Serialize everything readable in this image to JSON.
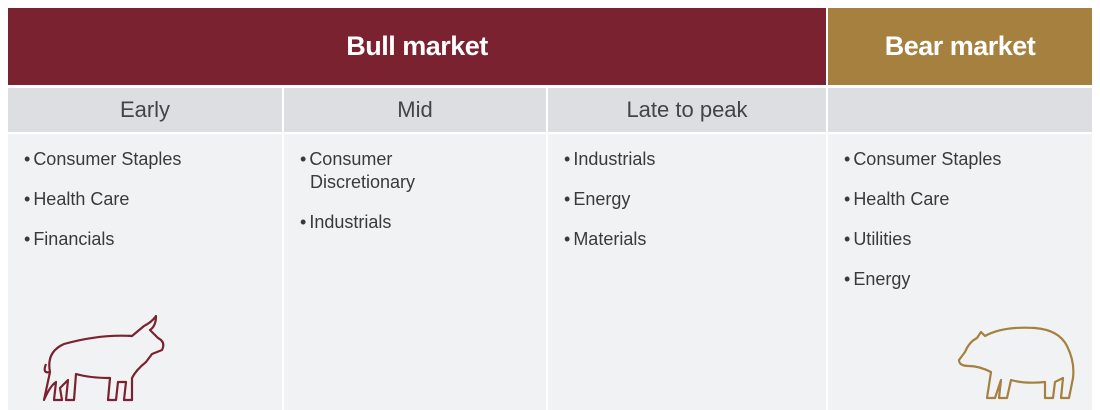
{
  "header": {
    "bull": "Bull market",
    "bear": "Bear market"
  },
  "columns": [
    {
      "heading": "Early",
      "items": [
        "Consumer Staples",
        "Health Care",
        "Financials"
      ]
    },
    {
      "heading": "Mid",
      "items": [
        "Consumer Discretionary",
        "Industrials"
      ]
    },
    {
      "heading": "Late to peak",
      "items": [
        "Industrials",
        "Energy",
        "Materials"
      ]
    },
    {
      "items": [
        "Consumer Staples",
        "Health Care",
        "Utilities",
        "Energy"
      ]
    }
  ]
}
